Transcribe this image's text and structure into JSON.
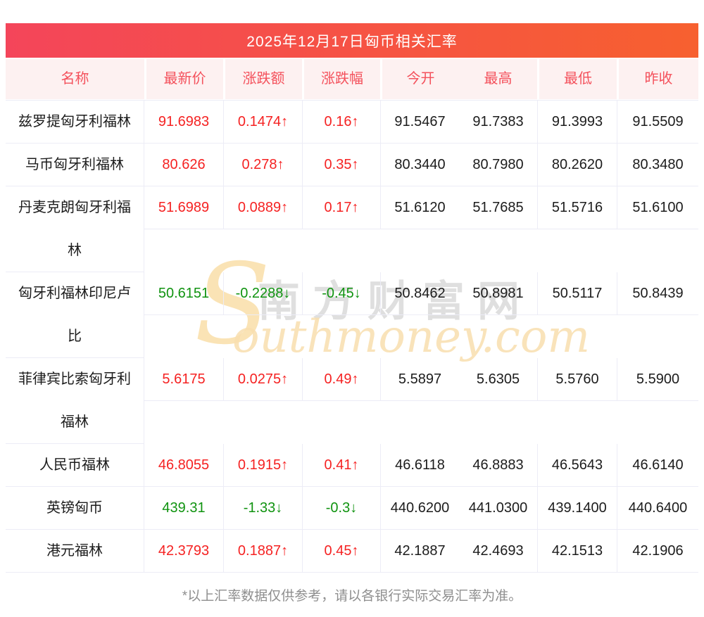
{
  "banner": {
    "title": "2025年12月17日匈币相关汇率"
  },
  "table": {
    "columns": [
      "名称",
      "最新价",
      "涨跌额",
      "涨跌幅",
      "今开",
      "最高",
      "最低",
      "昨收"
    ],
    "rows": [
      {
        "name": "兹罗提匈牙利福林",
        "latest": "91.6983",
        "change": "0.1474↑",
        "change_pct": "0.16↑",
        "open": "91.5467",
        "high": "91.7383",
        "low": "91.3993",
        "prev_close": "91.5509",
        "trend": "up"
      },
      {
        "name": "马币匈牙利福林",
        "latest": "80.626",
        "change": "0.278↑",
        "change_pct": "0.35↑",
        "open": "80.3440",
        "high": "80.7980",
        "low": "80.2620",
        "prev_close": "80.3480",
        "trend": "up"
      },
      {
        "name": "丹麦克朗匈牙利福林",
        "latest": "51.6989",
        "change": "0.0889↑",
        "change_pct": "0.17↑",
        "open": "51.6120",
        "high": "51.7685",
        "low": "51.5716",
        "prev_close": "51.6100",
        "trend": "up"
      },
      {
        "name": "匈牙利福林印尼卢比",
        "latest": "50.6151",
        "change": "-0.2288↓",
        "change_pct": "-0.45↓",
        "open": "50.8462",
        "high": "50.8981",
        "low": "50.5117",
        "prev_close": "50.8439",
        "trend": "down"
      },
      {
        "name": "菲律宾比索匈牙利福林",
        "latest": "5.6175",
        "change": "0.0275↑",
        "change_pct": "0.49↑",
        "open": "5.5897",
        "high": "5.6305",
        "low": "5.5760",
        "prev_close": "5.5900",
        "trend": "up"
      },
      {
        "name": "人民币福林",
        "latest": "46.8055",
        "change": "0.1915↑",
        "change_pct": "0.41↑",
        "open": "46.6118",
        "high": "46.8883",
        "low": "46.5643",
        "prev_close": "46.6140",
        "trend": "up"
      },
      {
        "name": "英镑匈币",
        "latest": "439.31",
        "change": "-1.33↓",
        "change_pct": "-0.3↓",
        "open": "440.6200",
        "high": "441.0300",
        "low": "439.1400",
        "prev_close": "440.6400",
        "trend": "down"
      },
      {
        "name": "港元福林",
        "latest": "42.3793",
        "change": "0.1887↑",
        "change_pct": "0.45↑",
        "open": "42.1887",
        "high": "42.4693",
        "low": "42.1513",
        "prev_close": "42.1906",
        "trend": "up"
      }
    ]
  },
  "watermark": {
    "s_glyph": "S",
    "cn": "南方财富网",
    "en": "outhmoney.com"
  },
  "footer": {
    "note": "*以上汇率数据仅供参考，请以各银行实际交易汇率为准。"
  },
  "colors": {
    "banner_gradient_left": "#f4455a",
    "banner_gradient_right": "#f7602f",
    "header_bg": "#fdf1f1",
    "header_text": "#f4515c",
    "up_red": "#f52222",
    "down_green": "#109310",
    "border": "#ececf6",
    "watermark_cream": "#f9dfae",
    "footer_gray": "#8e8e8e"
  }
}
